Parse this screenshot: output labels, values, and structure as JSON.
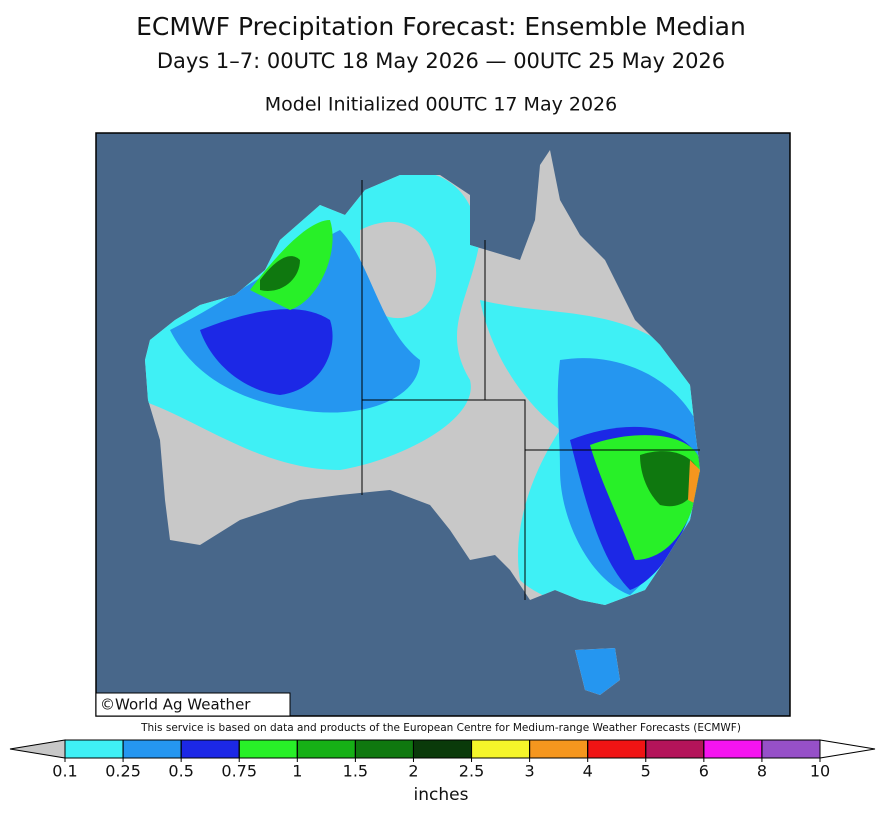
{
  "header": {
    "title": "ECMWF Precipitation Forecast: Ensemble Median",
    "subtitle": "Days 1–7: 00UTC 18 May 2026 — 00UTC 25 May 2026",
    "init": "Model Initialized 00UTC 17 May 2026"
  },
  "map": {
    "credit": "©World Ag Weather"
  },
  "footer": {
    "note": "This service is based on data and products of the European Centre for Medium-range Weather Forecasts (ECMWF)"
  },
  "colorbar": {
    "ticks": [
      0.1,
      0.25,
      0.5,
      0.75,
      1,
      1.5,
      2,
      2.5,
      3,
      4,
      5,
      6,
      8,
      10
    ],
    "under_color": "#c8c8c8",
    "over_color": "#ffffff",
    "colors": [
      "#3ff0f5",
      "#2596f0",
      "#1c28e6",
      "#28f028",
      "#16b016",
      "#0f780f",
      "#0a3a0a",
      "#f5f52a",
      "#f5961e",
      "#f01414",
      "#b4145a",
      "#f514f0",
      "#9650c8"
    ],
    "label": "inches"
  }
}
